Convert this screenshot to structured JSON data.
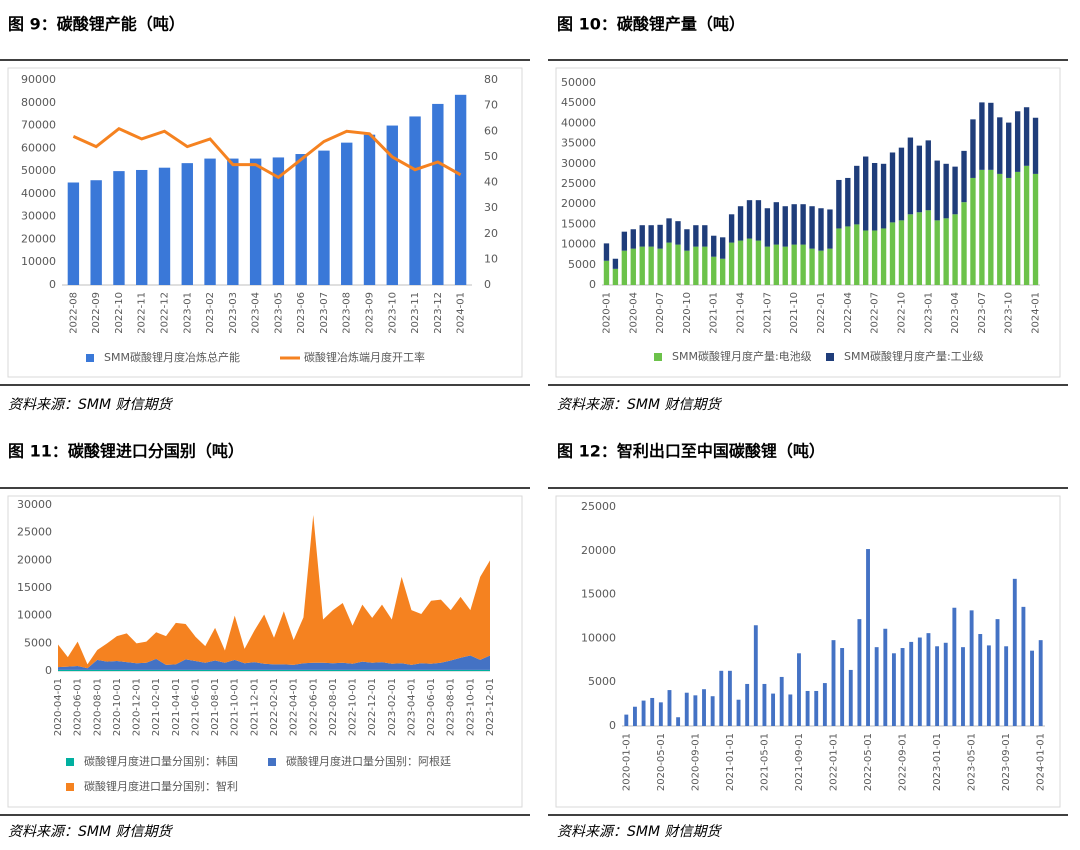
{
  "chart_data": [
    {
      "type": "combo",
      "title": "图 9：碳酸锂产能（吨）",
      "source": "资料来源：SMM 财信期货",
      "categories": [
        "2022-08",
        "2022-09",
        "2022-10",
        "2022-11",
        "2022-12",
        "2023-01",
        "2023-02",
        "2023-03",
        "2023-04",
        "2023-05",
        "2023-06",
        "2023-07",
        "2023-08",
        "2023-09",
        "2023-10",
        "2023-11",
        "2023-12",
        "2024-01"
      ],
      "series": [
        {
          "name": "SMM碳酸锂月度冶炼总产能",
          "color": "#3a78d8",
          "type": "bar",
          "values": [
            45000,
            46000,
            50000,
            50500,
            51500,
            53500,
            55500,
            55500,
            55500,
            56000,
            57500,
            59000,
            62500,
            66000,
            70000,
            74000,
            79500,
            83500
          ]
        },
        {
          "name": "碳酸锂冶炼端月度开工率",
          "color": "#f58220",
          "type": "line",
          "axis": "y2",
          "values": [
            58,
            54,
            61,
            57,
            60,
            54,
            57,
            47,
            47,
            42,
            49,
            56,
            60,
            59,
            50,
            45,
            48,
            43
          ]
        }
      ],
      "ylim": [
        0,
        90000
      ],
      "yticks": [
        0,
        10000,
        20000,
        30000,
        40000,
        50000,
        60000,
        70000,
        80000,
        90000
      ],
      "y2lim": [
        0,
        80
      ],
      "y2ticks": [
        0,
        10,
        20,
        30,
        40,
        50,
        60,
        70,
        80
      ],
      "grid": false
    },
    {
      "type": "stacked_bar",
      "title": "图 10：碳酸锂产量（吨）",
      "source": "资料来源：SMM 财信期货",
      "categories": [
        "2020-01",
        null,
        null,
        "2020-04",
        null,
        null,
        "2020-07",
        null,
        null,
        "2020-10",
        null,
        null,
        "2021-01",
        null,
        null,
        "2021-04",
        null,
        null,
        "2021-07",
        null,
        null,
        "2021-10",
        null,
        null,
        "2022-01",
        null,
        null,
        "2022-04",
        null,
        null,
        "2022-07",
        null,
        null,
        "2022-10",
        null,
        null,
        "2023-01",
        null,
        null,
        "2023-04",
        null,
        null,
        "2023-07",
        null,
        null,
        "2023-10",
        null,
        null,
        "2024-01"
      ],
      "series": [
        {
          "name": "SMM碳酸锂月度产量:电池级",
          "color": "#6cc24a",
          "values": [
            6000,
            4000,
            8500,
            9000,
            9500,
            9500,
            9000,
            10500,
            10000,
            8500,
            9500,
            9500,
            7000,
            6500,
            10500,
            11000,
            11500,
            11000,
            9500,
            10000,
            9500,
            10000,
            10000,
            9000,
            8500,
            9000,
            14000,
            14500,
            15000,
            13500,
            13500,
            14000,
            15500,
            16000,
            17500,
            18000,
            18500,
            16000,
            16500,
            17500,
            20500,
            26500,
            28500,
            28500,
            27500,
            26500,
            28000,
            29500,
            27500
          ]
        },
        {
          "name": "SMM碳酸锂月度产量:工业级",
          "color": "#1f3d7a",
          "values": [
            4300,
            2500,
            4700,
            4800,
            5300,
            5300,
            5900,
            6000,
            5800,
            5300,
            5300,
            5300,
            5200,
            5300,
            7000,
            8500,
            9500,
            10000,
            9500,
            10500,
            10000,
            10000,
            10000,
            10500,
            10500,
            9700,
            12000,
            12000,
            14500,
            18300,
            16700,
            16000,
            17300,
            18000,
            19000,
            16500,
            17300,
            14800,
            13500,
            11800,
            12700,
            14500,
            16700,
            16600,
            14000,
            13700,
            15000,
            14500,
            13900
          ]
        }
      ],
      "ylim": [
        0,
        50000
      ],
      "yticks": [
        0,
        5000,
        10000,
        15000,
        20000,
        25000,
        30000,
        35000,
        40000,
        45000,
        50000
      ],
      "grid": false
    },
    {
      "type": "stacked_area",
      "title": "图 11：碳酸锂进口分国别（吨）",
      "source": "资料来源：SMM 财信期货",
      "categories": [
        "2020-04-01",
        null,
        "2020-06-01",
        null,
        "2020-08-01",
        null,
        "2020-10-01",
        null,
        "2020-12-01",
        null,
        "2021-02-01",
        null,
        "2021-04-01",
        null,
        "2021-06-01",
        null,
        "2021-08-01",
        null,
        "2021-10-01",
        null,
        "2021-12-01",
        null,
        "2022-02-01",
        null,
        "2022-04-01",
        null,
        "2022-06-01",
        null,
        "2022-08-01",
        null,
        "2022-10-01",
        null,
        "2022-12-01",
        null,
        "2023-02-01",
        null,
        "2023-04-01",
        null,
        "2023-06-01",
        null,
        "2023-08-01",
        null,
        "2023-10-01",
        null,
        "2023-12-01"
      ],
      "series": [
        {
          "name": "碳酸锂月度进口量分国别：韩国",
          "color": "#00b0a0",
          "values": [
            200,
            200,
            200,
            200,
            200,
            200,
            200,
            200,
            200,
            200,
            200,
            200,
            200,
            200,
            200,
            200,
            200,
            200,
            200,
            200,
            200,
            200,
            200,
            200,
            200,
            200,
            200,
            200,
            200,
            200,
            200,
            200,
            200,
            200,
            200,
            200,
            200,
            200,
            200,
            200,
            200,
            200,
            200,
            200,
            200
          ]
        },
        {
          "name": "碳酸锂月度进口量分国别：阿根廷",
          "color": "#4472c4",
          "values": [
            500,
            600,
            700,
            300,
            1800,
            1500,
            1600,
            1400,
            1200,
            1300,
            2000,
            900,
            1000,
            1900,
            1600,
            1300,
            1700,
            1300,
            1800,
            1200,
            1400,
            1100,
            1000,
            1000,
            900,
            1200,
            1300,
            1300,
            1200,
            1300,
            1100,
            1500,
            1300,
            1400,
            1100,
            1200,
            900,
            1200,
            1100,
            1300,
            1700,
            2200,
            2600,
            1800,
            2600
          ]
        },
        {
          "name": "碳酸锂月度进口量分国别：智利",
          "color": "#f58220",
          "values": [
            4100,
            1700,
            4400,
            700,
            1800,
            3300,
            4500,
            5200,
            3600,
            3800,
            4800,
            5200,
            7500,
            6400,
            4400,
            3000,
            5900,
            2200,
            8000,
            2600,
            5700,
            8900,
            4800,
            9600,
            4500,
            8300,
            26700,
            7800,
            9600,
            10800,
            6900,
            10300,
            8100,
            10400,
            8000,
            15600,
            9900,
            8900,
            11400,
            11400,
            9100,
            11000,
            8200,
            15000,
            17200
          ]
        }
      ],
      "ylim": [
        0,
        30000
      ],
      "yticks": [
        0,
        5000,
        10000,
        15000,
        20000,
        25000,
        30000
      ],
      "grid": false
    },
    {
      "type": "bar",
      "title": "图 12：智利出口至中国碳酸锂（吨）",
      "source": "资料来源：SMM 财信期货",
      "categories": [
        "2020-01-01",
        null,
        null,
        null,
        "2020-05-01",
        null,
        null,
        null,
        "2020-09-01",
        null,
        null,
        null,
        "2021-01-01",
        null,
        null,
        null,
        "2021-05-01",
        null,
        null,
        null,
        "2021-09-01",
        null,
        null,
        null,
        "2022-01-01",
        null,
        null,
        null,
        "2022-05-01",
        null,
        null,
        null,
        "2022-09-01",
        null,
        null,
        null,
        "2023-01-01",
        null,
        null,
        null,
        "2023-05-01",
        null,
        null,
        null,
        "2023-09-01",
        null,
        null,
        null,
        "2024-01-01"
      ],
      "color": "#4472c4",
      "values": [
        1300,
        2200,
        2900,
        3200,
        2700,
        4100,
        1000,
        3800,
        3500,
        4200,
        3400,
        6300,
        6300,
        3000,
        4800,
        11500,
        4800,
        3700,
        5600,
        3600,
        8300,
        4000,
        4000,
        4900,
        9800,
        8900,
        6400,
        12200,
        20200,
        9000,
        11100,
        8300,
        8900,
        9600,
        10100,
        10600,
        9100,
        9500,
        13500,
        9000,
        13200,
        10500,
        9200,
        12200,
        9100,
        16800,
        13600,
        8600,
        9800
      ],
      "ylim": [
        0,
        25000
      ],
      "yticks": [
        0,
        5000,
        10000,
        15000,
        20000,
        25000
      ],
      "grid": false
    }
  ]
}
